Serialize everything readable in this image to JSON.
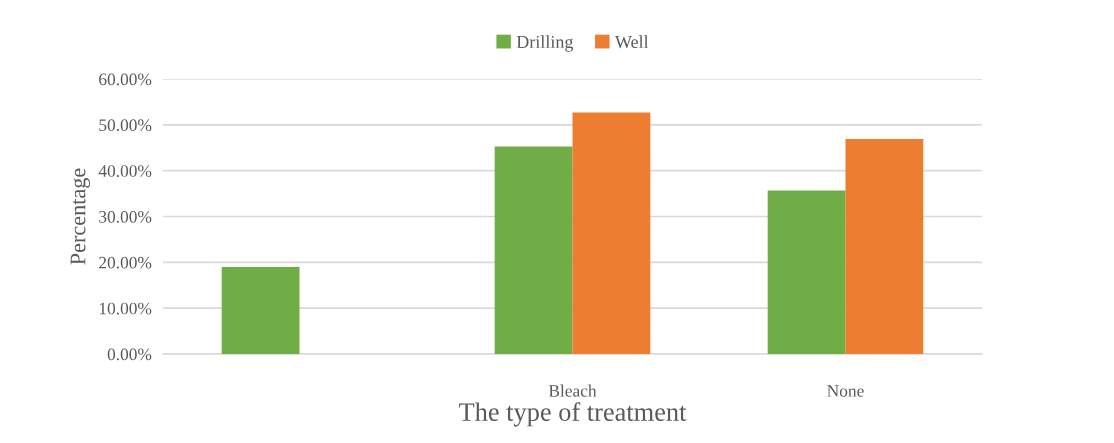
{
  "chart_data": {
    "type": "bar",
    "xlabel": "The type of treatment",
    "ylabel": "Percentage",
    "categories": [
      null,
      "Bleach",
      "None"
    ],
    "series": [
      {
        "name": "Drilling",
        "color": "#70ad47",
        "values": [
          19.0,
          45.3,
          35.7
        ]
      },
      {
        "name": "Well",
        "color": "#ed7d31",
        "values": [
          null,
          52.7,
          46.9
        ]
      }
    ],
    "ylim": [
      0,
      60
    ],
    "yticks": [
      {
        "value": 0,
        "label": "0.00%"
      },
      {
        "value": 10,
        "label": "10.00%"
      },
      {
        "value": 20,
        "label": "20.00%"
      },
      {
        "value": 30,
        "label": "30.00%"
      },
      {
        "value": 40,
        "label": "40.00%"
      },
      {
        "value": 50,
        "label": "50.00%"
      },
      {
        "value": 60,
        "label": "60.00%"
      }
    ],
    "grid": "y",
    "legend": "top"
  }
}
